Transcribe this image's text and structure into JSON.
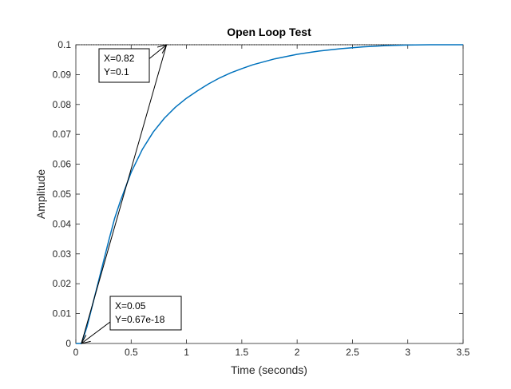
{
  "chart_data": {
    "type": "line",
    "title": "Open Loop Test",
    "xlabel": "Time (seconds)",
    "ylabel": "Amplitude",
    "xlim": [
      0,
      3.5
    ],
    "ylim": [
      0,
      0.1
    ],
    "x_ticks": [
      0,
      0.5,
      1,
      1.5,
      2,
      2.5,
      3,
      3.5
    ],
    "x_tick_labels": [
      "0",
      "0.5",
      "1",
      "1.5",
      "2",
      "2.5",
      "3",
      "3.5"
    ],
    "y_ticks": [
      0,
      0.01,
      0.02,
      0.03,
      0.04,
      0.05,
      0.06,
      0.07,
      0.08,
      0.09,
      0.1
    ],
    "y_tick_labels": [
      "0",
      "0.01",
      "0.02",
      "0.03",
      "0.04",
      "0.05",
      "0.06",
      "0.07",
      "0.08",
      "0.09",
      "0.1"
    ],
    "grid": false,
    "series": [
      {
        "color": "#0072bd",
        "x": [
          0,
          0.05,
          0.1,
          0.15,
          0.2,
          0.25,
          0.3,
          0.35,
          0.4,
          0.5,
          0.6,
          0.7,
          0.8,
          0.9,
          1.0,
          1.1,
          1.2,
          1.3,
          1.4,
          1.5,
          1.6,
          1.8,
          2.0,
          2.2,
          2.4,
          2.6,
          2.8,
          3.0,
          3.2,
          3.5
        ],
        "y": [
          0,
          0.0,
          0.0055,
          0.0128,
          0.0201,
          0.0275,
          0.0348,
          0.0418,
          0.0474,
          0.0573,
          0.0649,
          0.0708,
          0.0754,
          0.0791,
          0.0821,
          0.0846,
          0.0869,
          0.0889,
          0.0906,
          0.092,
          0.0933,
          0.0953,
          0.0968,
          0.0979,
          0.0987,
          0.0993,
          0.0997,
          0.0999,
          0.1,
          0.1
        ]
      }
    ],
    "reference_line": {
      "color": "#000000",
      "style": "dotted",
      "y": 0.1,
      "x_from": 0.05,
      "x_to": 3.5
    },
    "tangent_line": {
      "color": "#000000",
      "x": [
        0.05,
        0.82
      ],
      "y": [
        0,
        0.1
      ]
    },
    "annotations": [
      {
        "lines": [
          "X=0.82",
          "Y=0.1"
        ],
        "target": [
          0.82,
          0.1
        ]
      },
      {
        "lines": [
          "X=0.05",
          "Y=0.67e-18"
        ],
        "target": [
          0.05,
          0
        ]
      }
    ]
  }
}
